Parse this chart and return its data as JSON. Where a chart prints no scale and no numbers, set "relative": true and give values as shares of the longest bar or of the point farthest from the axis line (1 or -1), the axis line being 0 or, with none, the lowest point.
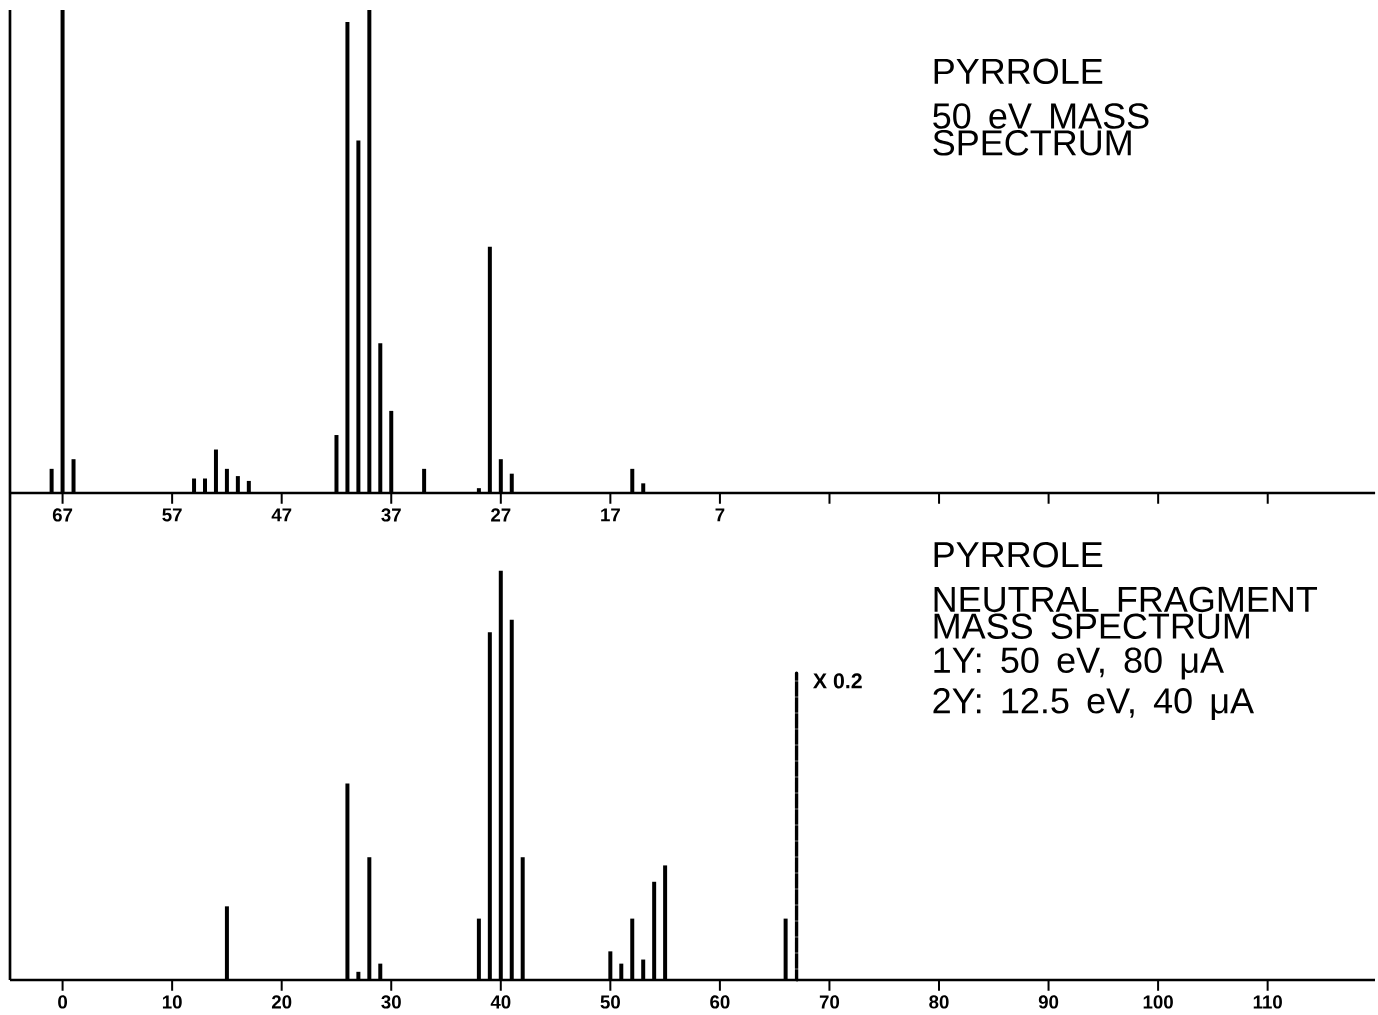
{
  "chart_data": [
    {
      "type": "bar",
      "title": "PYRROLE",
      "subtitle": "50 eV MASS SPECTRUM",
      "relative": true,
      "xlim": [
        71.8,
        -52.8
      ],
      "xticks": [
        67,
        57,
        47,
        37,
        27,
        17,
        7,
        {
          "value": -3,
          "label": null
        },
        {
          "value": -13,
          "label": null
        },
        {
          "value": -23,
          "label": null
        },
        {
          "value": -33,
          "label": null
        },
        {
          "value": -43,
          "label": null
        }
      ],
      "tick_labels": "x",
      "series": [
        {
          "color": "#000000",
          "x": [
            68,
            67,
            66,
            55,
            54,
            53,
            52,
            51,
            50,
            42,
            41,
            40,
            39,
            38,
            37,
            34,
            29,
            28,
            27,
            26,
            15,
            14
          ],
          "values": [
            0.05,
            1.0,
            0.07,
            0.03,
            0.03,
            0.09,
            0.05,
            0.035,
            0.025,
            0.12,
            0.975,
            0.73,
            1.0,
            0.31,
            0.17,
            0.05,
            0.01,
            0.51,
            0.07,
            0.04,
            0.05,
            0.02
          ]
        }
      ]
    },
    {
      "type": "bar",
      "title": "PYRROLE",
      "subtitle": "NEUTRAL FRAGMENT MASS SPECTRUM",
      "relative": true,
      "xlim": [
        -4.8,
        119.8
      ],
      "xticks": [
        0,
        10,
        20,
        30,
        40,
        50,
        60,
        70,
        80,
        90,
        100,
        110
      ],
      "tick_labels": "x",
      "annotations": [
        "1Y: 50 eV, 80 μA",
        "2Y: 12.5 eV, 40 μA",
        {
          "text": "X 0.2",
          "x": 67,
          "y": 0.75
        }
      ],
      "series": [
        {
          "color": "#000000",
          "x": [
            15,
            26,
            27,
            28,
            29,
            38,
            39,
            40,
            41,
            42,
            50,
            51,
            52,
            53,
            54,
            55,
            66
          ],
          "values": [
            0.18,
            0.48,
            0.02,
            0.3,
            0.04,
            0.15,
            0.85,
            1.0,
            0.88,
            0.3,
            0.07,
            0.04,
            0.15,
            0.05,
            0.24,
            0.28,
            0.15
          ]
        },
        {
          "color": "#000000",
          "line_style": "dashed",
          "x": [
            67
          ],
          "values": [
            0.75
          ]
        }
      ]
    }
  ]
}
